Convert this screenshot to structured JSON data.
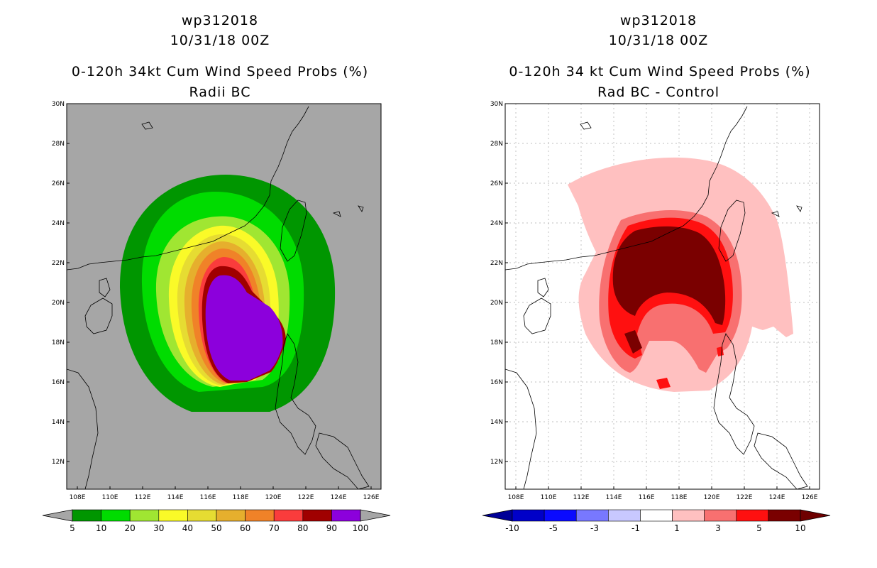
{
  "panels": [
    {
      "id": "radii-bc",
      "title_line1": "wp312018",
      "title_line2": "10/31/18 00Z",
      "title_line3": "0-120h 34kt Cum Wind Speed Probs (%)",
      "title_line4": "Radii BC",
      "background": "#a6a6a6",
      "colorbar": {
        "labels": [
          "5",
          "10",
          "20",
          "30",
          "40",
          "50",
          "60",
          "70",
          "80",
          "90",
          "100"
        ],
        "colors": [
          "#009600",
          "#00dc00",
          "#a0e632",
          "#fafa28",
          "#e6dc32",
          "#e6af2d",
          "#f08228",
          "#fa3c3c",
          "#a00000",
          "#8c00dc"
        ],
        "end_left": "#a6a6a6",
        "end_right": "#a6a6a6"
      }
    },
    {
      "id": "rad-bc-control",
      "title_line1": "wp312018",
      "title_line2": "10/31/18 00Z",
      "title_line3": "0-120h 34 kt Cum Wind Speed Probs (%)",
      "title_line4": "Rad BC - Control",
      "background": "#ffffff",
      "colorbar": {
        "labels": [
          "-10",
          "-5",
          "-3",
          "-1",
          "1",
          "3",
          "5",
          "10"
        ],
        "colors": [
          "#0000c8",
          "#0a0aff",
          "#7878ff",
          "#c8c8ff",
          "#ffffff",
          "#ffc0c0",
          "#f87070",
          "#ff1010",
          "#7a0000"
        ],
        "end_left": "#000096",
        "end_right": "#6e0000"
      }
    }
  ],
  "axes": {
    "lat_labels": [
      "30N",
      "28N",
      "26N",
      "24N",
      "22N",
      "20N",
      "18N",
      "16N",
      "14N",
      "12N"
    ],
    "lon_labels": [
      "108E",
      "110E",
      "112E",
      "114E",
      "116E",
      "118E",
      "120E",
      "122E",
      "124E",
      "126E"
    ]
  }
}
